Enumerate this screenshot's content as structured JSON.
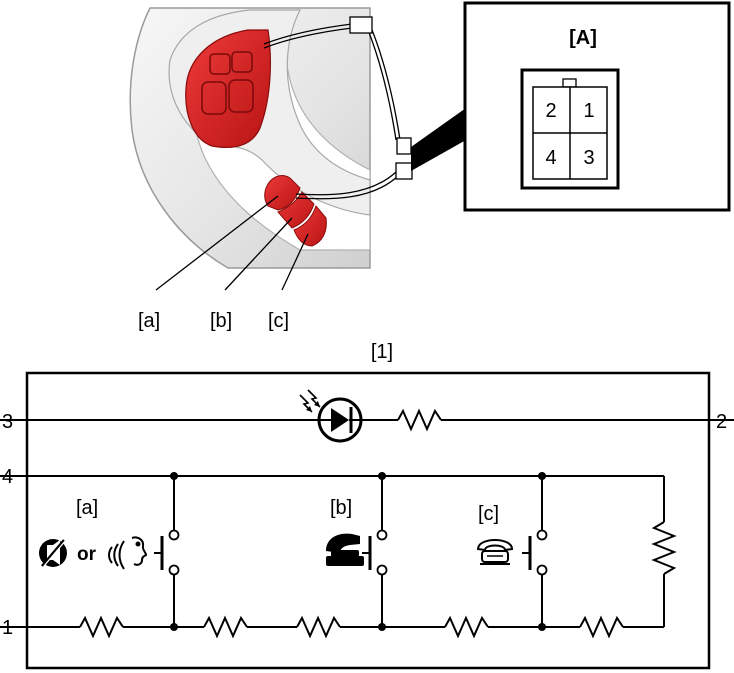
{
  "illustration": {
    "switch_labels": [
      "[a]",
      "[b]",
      "[c]"
    ],
    "connector": {
      "title": "[A]",
      "pins": [
        "2",
        "1",
        "4",
        "3"
      ]
    }
  },
  "schematic": {
    "title": "[1]",
    "terminals": {
      "left_top": "3",
      "left_mid": "4",
      "left_bottom": "1",
      "right_top": "2"
    },
    "switches": [
      {
        "label": "[a]",
        "or_text": "or",
        "icons": [
          "voice-mute-icon",
          "voice-recognition-icon"
        ]
      },
      {
        "label": "[b]",
        "icons": [
          "phone-off-hook-icon"
        ]
      },
      {
        "label": "[c]",
        "icons": [
          "phone-on-hook-icon"
        ]
      }
    ],
    "components": [
      "led-icon",
      "resistor",
      "push-switch"
    ]
  },
  "colors": {
    "switch_red": "#d81e1e",
    "wheel_grey": "#e6e6e6",
    "line": "#000000"
  }
}
